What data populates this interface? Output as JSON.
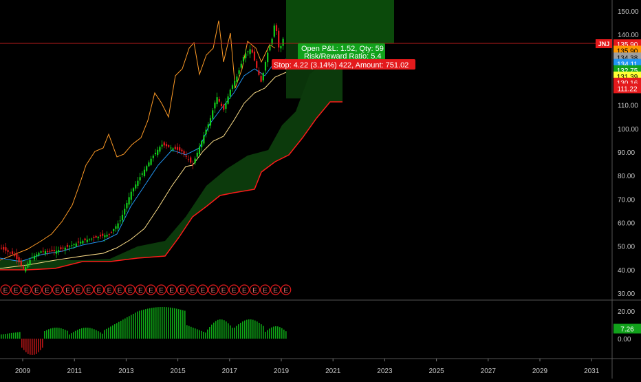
{
  "symbol": "JNJ",
  "position": {
    "pnl_label": "Open P&L: 1.52, Qty: 59",
    "rr_label": "Risk/Reward Ratio: 5.4",
    "stop_label": "Stop: 4.22 (3.14%) 422, Amount: 751.02"
  },
  "price_axis": {
    "ticks": [
      "150.00",
      "140.00",
      "110.00",
      "100.00",
      "90.00",
      "80.00",
      "70.00",
      "60.00",
      "50.00",
      "40.00",
      "30.00"
    ],
    "badges": [
      {
        "text": "135.90",
        "bg": "#e41a1c",
        "fg": "#ffffff",
        "value": 135.9
      },
      {
        "text": "135.90",
        "bg": "#ff9800",
        "fg": "#000000",
        "value": 133.2
      },
      {
        "text": "134.38",
        "bg": "#9e9e9e",
        "fg": "#000000",
        "value": 130.3
      },
      {
        "text": "134.11",
        "bg": "#2196f3",
        "fg": "#ffffff",
        "value": 127.6
      },
      {
        "text": "132.75",
        "bg": "#11a11b",
        "fg": "#ffffff",
        "value": 124.9
      },
      {
        "text": "131.39",
        "bg": "#ffff33",
        "fg": "#000000",
        "value": 122.2
      },
      {
        "text": "130.16",
        "bg": "#e41a1c",
        "fg": "#ffffff",
        "value": 119.6
      },
      {
        "text": "111.22",
        "bg": "#e41a1c",
        "fg": "#ffffff",
        "value": 117.1
      }
    ]
  },
  "indicator_axis": {
    "ticks": [
      "20.00",
      "0.00"
    ],
    "badge": {
      "text": "7.26",
      "bg": "#11a11b",
      "fg": "#ffffff",
      "value": 7.26
    }
  },
  "time_axis": {
    "ticks": [
      "2009",
      "2011",
      "2013",
      "2015",
      "2017",
      "2019",
      "2021",
      "2023",
      "2025",
      "2027",
      "2029",
      "2031"
    ]
  },
  "earnings_marker": "E",
  "colors": {
    "up": "#11d11b",
    "down": "#e41a1c",
    "cloud": "#0c3a0c",
    "cloud_lower": "#ff1a1a",
    "fast_line": "#2196f3",
    "slow_line": "#ffe08a",
    "lagging": "#ff9b26"
  }
}
